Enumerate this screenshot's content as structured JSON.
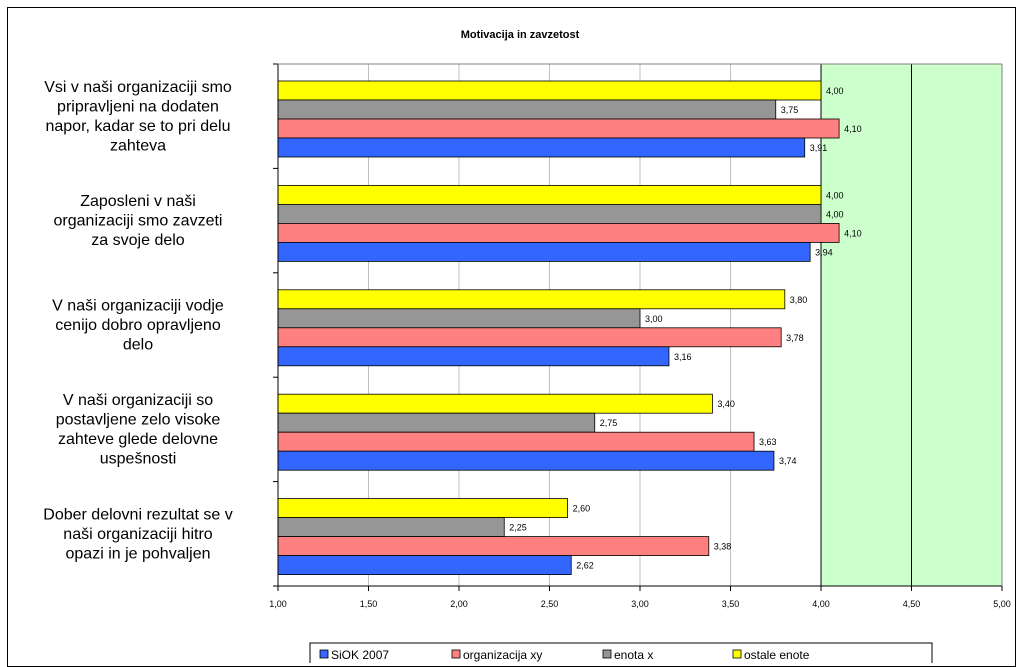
{
  "chart_data": {
    "type": "bar",
    "orientation": "horizontal",
    "title": "Motivacija in zavzetost",
    "categories": [
      "Vsi v naši organizaciji smo pripravljeni na dodaten napor, kadar se to pri delu zahteva",
      "Zaposleni v naši organizaciji smo zavzeti za svoje delo",
      "V naši organizaciji vodje cenijo dobro opravljeno delo",
      "V naši organizaciji so postavljene zelo visoke zahteve glede delovne uspešnosti",
      "Dober delovni rezultat se v naši organizaciji hitro opazi in je pohvaljen"
    ],
    "series": [
      {
        "name": "ostale enote",
        "color": "#ffff00",
        "values": [
          4.0,
          4.0,
          3.8,
          3.4,
          2.6
        ]
      },
      {
        "name": "enota x",
        "color": "#969696",
        "values": [
          3.75,
          4.0,
          3.0,
          2.75,
          2.25
        ]
      },
      {
        "name": "organizacija xy",
        "color": "#ff8080",
        "values": [
          4.1,
          4.1,
          3.78,
          3.63,
          3.38
        ]
      },
      {
        "name": "SiOK 2007",
        "color": "#3366ff",
        "values": [
          3.91,
          3.94,
          3.16,
          3.74,
          2.62
        ]
      }
    ],
    "value_labels": [
      [
        "4,00",
        "3,75",
        "4,10",
        "3,91"
      ],
      [
        "4,00",
        "4,00",
        "4,10",
        "3,94"
      ],
      [
        "3,80",
        "3,00",
        "3,78",
        "3,16"
      ],
      [
        "3,40",
        "2,75",
        "3,63",
        "3,74"
      ],
      [
        "2,60",
        "2,25",
        "3,38",
        "2,62"
      ]
    ],
    "xlim": [
      1.0,
      5.0
    ],
    "xticks": [
      1.0,
      1.5,
      2.0,
      2.5,
      3.0,
      3.5,
      4.0,
      4.5,
      5.0
    ],
    "xtick_labels": [
      "1,00",
      "1,50",
      "2,00",
      "2,50",
      "3,00",
      "3,50",
      "4,00",
      "4,50",
      "5,00"
    ],
    "legend": [
      "SiOK 2007",
      "organizacija xy",
      "enota x",
      "ostale enote"
    ],
    "legend_position": "bottom",
    "grid": true,
    "shaded_range": [
      4.0,
      5.0
    ],
    "shade_color": "#ccffcc"
  },
  "category_lines": [
    [
      "Vsi v naši organizaciji smo",
      "pripravljeni na dodaten",
      "napor, kadar se to pri delu",
      "zahteva"
    ],
    [
      "Zaposleni v naši",
      "organizaciji smo zavzeti",
      "za svoje delo"
    ],
    [
      "V naši organizaciji vodje",
      "cenijo dobro opravljeno",
      "delo"
    ],
    [
      "V naši organizaciji so",
      "postavljene zelo visoke",
      "zahteve glede delovne",
      "uspešnosti"
    ],
    [
      "Dober delovni rezultat se v",
      "naši organizaciji hitro",
      "opazi in je pohvaljen"
    ]
  ],
  "legend_order": [
    "SiOK 2007",
    "organizacija xy",
    "enota x",
    "ostale enote"
  ],
  "legend_colors": [
    "#3366ff",
    "#ff8080",
    "#969696",
    "#ffff00"
  ]
}
